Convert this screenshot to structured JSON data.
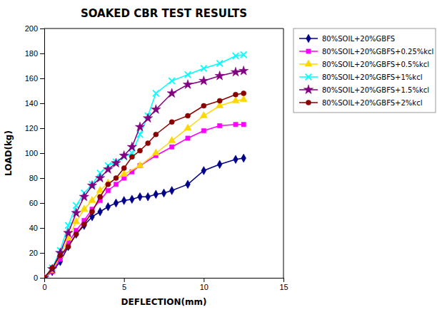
{
  "chart_data": {
    "type": "line",
    "title": "SOAKED CBR TEST RESULTS",
    "x_label": "DEFLECTION(mm)",
    "y_label": "LOAD(kg)",
    "xlim": [
      0,
      15
    ],
    "ylim": [
      0,
      200
    ],
    "xticks": [
      0,
      5,
      10,
      15
    ],
    "yticks": [
      0,
      20,
      40,
      60,
      80,
      100,
      120,
      140,
      160,
      180,
      200
    ],
    "grid": false,
    "legend": "right",
    "series": [
      {
        "name": "80%SOIL+20%GBFS",
        "color": "#00008B",
        "marker": "diamond",
        "x": [
          0,
          0.5,
          1.0,
          1.5,
          2.0,
          2.5,
          3.0,
          3.5,
          4.0,
          4.5,
          5.0,
          5.5,
          6.0,
          6.5,
          7.0,
          7.5,
          8.0,
          9.0,
          10.0,
          11.0,
          12.0,
          12.5
        ],
        "values": [
          0,
          5,
          13,
          25,
          35,
          42,
          49,
          53,
          57,
          60,
          62,
          63,
          65,
          65,
          67,
          68,
          70,
          75,
          86,
          91,
          95,
          96
        ]
      },
      {
        "name": "80%SOIL+20%GBFS+0.25%kcl",
        "color": "#FF00FF",
        "marker": "square",
        "x": [
          0,
          0.5,
          1.0,
          1.5,
          2.0,
          2.5,
          3.0,
          3.5,
          4.0,
          4.5,
          5.0,
          5.5,
          6.0,
          7.0,
          8.0,
          9.0,
          10.0,
          11.0,
          12.0,
          12.5
        ],
        "values": [
          0,
          5,
          15,
          28,
          38,
          46,
          55,
          62,
          70,
          75,
          80,
          85,
          90,
          98,
          105,
          112,
          118,
          122,
          123,
          123
        ]
      },
      {
        "name": "80%SOIL+20%GBFS+0.5%kcl",
        "color": "#FFD700",
        "marker": "triangle-up",
        "x": [
          0,
          0.5,
          1.0,
          1.5,
          2.0,
          2.5,
          3.0,
          3.5,
          4.0,
          5.0,
          6.0,
          7.0,
          8.0,
          9.0,
          10.0,
          11.0,
          12.0,
          12.5
        ],
        "values": [
          0,
          6,
          18,
          32,
          45,
          55,
          62,
          70,
          76,
          83,
          90,
          100,
          110,
          120,
          130,
          138,
          142,
          143
        ]
      },
      {
        "name": "80%SOIL+20%GBFS+1%kcl",
        "color": "#00FFFF",
        "marker": "x",
        "x": [
          0,
          0.5,
          1.0,
          1.5,
          2.0,
          2.5,
          3.0,
          3.5,
          4.0,
          4.5,
          5.0,
          5.5,
          6.0,
          6.5,
          7.0,
          8.0,
          9.0,
          10.0,
          11.0,
          12.0,
          12.5
        ],
        "values": [
          0,
          8,
          22,
          42,
          58,
          68,
          75,
          84,
          90,
          93,
          97,
          100,
          115,
          130,
          148,
          158,
          163,
          168,
          172,
          178,
          179
        ]
      },
      {
        "name": "80%SOIL+20%GBFS+1.5%kcl",
        "color": "#800080",
        "marker": "star",
        "x": [
          0,
          0.5,
          1.0,
          1.5,
          2.0,
          2.5,
          3.0,
          3.5,
          4.0,
          4.5,
          5.0,
          5.5,
          6.0,
          6.5,
          7.0,
          8.0,
          9.0,
          10.0,
          11.0,
          12.0,
          12.5
        ],
        "values": [
          0,
          7,
          20,
          36,
          52,
          65,
          74,
          80,
          87,
          92,
          98,
          105,
          121,
          128,
          135,
          148,
          155,
          158,
          162,
          165,
          166
        ]
      },
      {
        "name": "80%SOIL+20%GBFS+2%kcl",
        "color": "#8B0000",
        "marker": "circle",
        "x": [
          0,
          0.5,
          1.0,
          1.5,
          2.0,
          2.5,
          3.0,
          3.5,
          4.0,
          4.5,
          5.0,
          5.5,
          6.0,
          6.5,
          7.0,
          8.0,
          9.0,
          10.0,
          11.0,
          12.0,
          12.5
        ],
        "values": [
          0,
          8,
          18,
          25,
          35,
          43,
          53,
          65,
          75,
          80,
          88,
          97,
          102,
          108,
          115,
          125,
          130,
          138,
          142,
          147,
          148
        ]
      }
    ]
  }
}
